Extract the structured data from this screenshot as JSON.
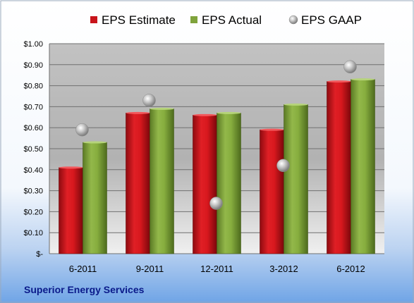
{
  "chart_data": {
    "type": "bar",
    "company": "Superior Energy Services",
    "categories": [
      "6-2011",
      "9-2011",
      "12-2011",
      "3-2012",
      "6-2012"
    ],
    "series": [
      {
        "name": "EPS Estimate",
        "type": "bar",
        "color": "#c8141b",
        "values": [
          0.41,
          0.67,
          0.66,
          0.59,
          0.82
        ]
      },
      {
        "name": "EPS Actual",
        "type": "bar",
        "color": "#7fa33c",
        "values": [
          0.53,
          0.69,
          0.67,
          0.71,
          0.83
        ]
      },
      {
        "name": "EPS GAAP",
        "type": "scatter",
        "color": "#a8a8a8",
        "values": [
          0.59,
          0.73,
          0.24,
          0.42,
          0.89
        ]
      }
    ],
    "ylim": [
      0,
      1.0
    ],
    "yticks": [
      0,
      0.1,
      0.2,
      0.3,
      0.4,
      0.5,
      0.6,
      0.7,
      0.8,
      0.9,
      1.0
    ],
    "ytick_labels": [
      "$-",
      "$0.10",
      "$0.20",
      "$0.30",
      "$0.40",
      "$0.50",
      "$0.60",
      "$0.70",
      "$0.80",
      "$0.90",
      "$1.00"
    ],
    "legend_position": "top",
    "grid": true
  }
}
